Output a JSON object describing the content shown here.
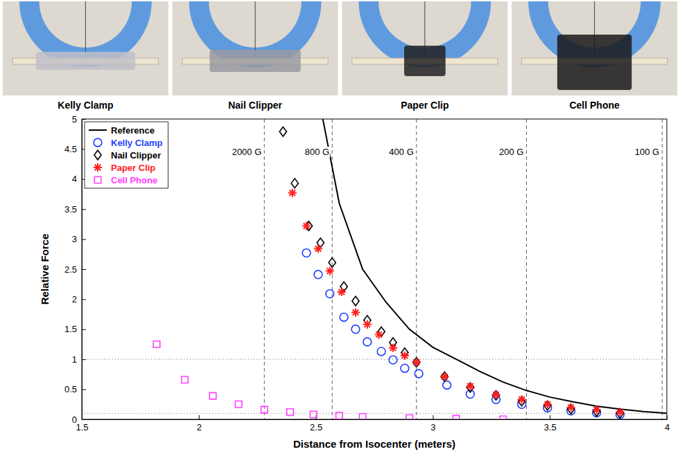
{
  "photos": {
    "captions": [
      "Kelly Clamp",
      "Nail Clipper",
      "Paper Clip",
      "Cell Phone"
    ]
  },
  "chart_data": {
    "type": "scatter",
    "x_label": "Distance from Isocenter (meters)",
    "y_label": "Relative Force",
    "xlim": [
      1.5,
      4
    ],
    "xticks": [
      1.5,
      2,
      2.5,
      3,
      3.5,
      4
    ],
    "ylim": [
      0,
      5
    ],
    "yticks": [
      0,
      0.5,
      1,
      1.5,
      2,
      2.5,
      3,
      3.5,
      4,
      4.5,
      5
    ],
    "legend": "upper left",
    "annotations": [
      {
        "x": 2.28,
        "y": 4.4,
        "text": "2000 G"
      },
      {
        "x": 2.57,
        "y": 4.4,
        "text": "800 G"
      },
      {
        "x": 2.93,
        "y": 4.4,
        "text": "400 G"
      },
      {
        "x": 3.4,
        "y": 4.4,
        "text": "200 G"
      },
      {
        "x": 3.98,
        "y": 4.4,
        "text": "100 G"
      }
    ],
    "reference_lines": [
      1,
      0.1
    ],
    "series": [
      {
        "name": "Reference",
        "type": "line",
        "line_style": "solid",
        "color": "#000000",
        "x": [
          2.53,
          2.6,
          2.7,
          2.8,
          2.9,
          3.0,
          3.1,
          3.2,
          3.3,
          3.4,
          3.5,
          3.6,
          3.7,
          3.8,
          3.9,
          4.0
        ],
        "values": [
          5,
          3.6,
          2.5,
          1.95,
          1.5,
          1.2,
          1.0,
          0.8,
          0.62,
          0.48,
          0.37,
          0.29,
          0.22,
          0.17,
          0.13,
          0.1
        ]
      },
      {
        "name": "Kelly Clamp",
        "type": "scatter",
        "marker": "circle",
        "color": "#1f3fff",
        "x": [
          2.46,
          2.51,
          2.56,
          2.62,
          2.67,
          2.72,
          2.78,
          2.83,
          2.88,
          2.94,
          3.06,
          3.16,
          3.27,
          3.38,
          3.49,
          3.59,
          3.7,
          3.8
        ],
        "values": [
          2.77,
          2.41,
          2.09,
          1.7,
          1.5,
          1.29,
          1.13,
          0.99,
          0.85,
          0.76,
          0.57,
          0.42,
          0.33,
          0.25,
          0.19,
          0.14,
          0.11,
          0.08
        ]
      },
      {
        "name": "Nail Clipper",
        "type": "scatter",
        "marker": "diamond",
        "color": "#000000",
        "x": [
          2.36,
          2.41,
          2.47,
          2.52,
          2.57,
          2.62,
          2.67,
          2.72,
          2.78,
          2.83,
          2.88,
          2.93,
          3.05,
          3.16,
          3.27,
          3.38,
          3.49,
          3.59,
          3.7,
          3.8
        ],
        "values": [
          4.79,
          3.93,
          3.22,
          2.94,
          2.61,
          2.21,
          1.97,
          1.65,
          1.46,
          1.28,
          1.11,
          0.95,
          0.71,
          0.53,
          0.4,
          0.3,
          0.23,
          0.17,
          0.13,
          0.1
        ]
      },
      {
        "name": "Paper Clip",
        "type": "scatter",
        "marker": "asterisk",
        "color": "#ff2020",
        "x": [
          2.4,
          2.46,
          2.51,
          2.56,
          2.61,
          2.67,
          2.72,
          2.77,
          2.83,
          2.88,
          2.93,
          3.05,
          3.16,
          3.27,
          3.38,
          3.49,
          3.59,
          3.7,
          3.8
        ],
        "values": [
          3.77,
          3.22,
          2.84,
          2.47,
          2.12,
          1.78,
          1.58,
          1.41,
          1.19,
          1.06,
          0.95,
          0.71,
          0.55,
          0.41,
          0.33,
          0.25,
          0.2,
          0.16,
          0.12
        ]
      },
      {
        "name": "Cell Phone",
        "type": "scatter",
        "marker": "square",
        "color": "#ff40ff",
        "x": [
          1.82,
          1.94,
          2.06,
          2.17,
          2.28,
          2.39,
          2.49,
          2.6,
          2.7,
          2.9,
          3.1,
          3.3
        ],
        "values": [
          1.25,
          0.66,
          0.39,
          0.25,
          0.16,
          0.12,
          0.08,
          0.06,
          0.04,
          0.02,
          0.01,
          0.0
        ]
      }
    ]
  }
}
